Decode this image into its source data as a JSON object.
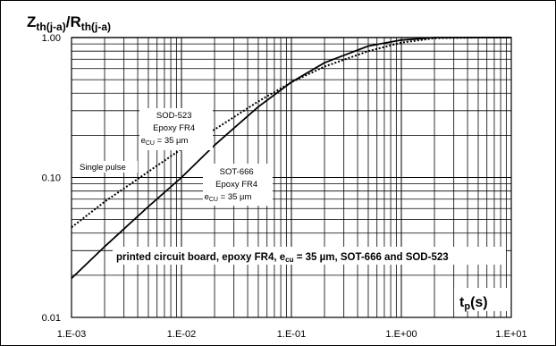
{
  "chart_data": {
    "type": "line",
    "title_parts": [
      "Z",
      "th(j-a)",
      "/R",
      "th(j-a)"
    ],
    "xlabel_parts": [
      "t",
      "p",
      "(s)"
    ],
    "xscale": "log",
    "yscale": "log",
    "xlim": [
      0.001,
      10
    ],
    "ylim": [
      0.01,
      1
    ],
    "grid": true,
    "x_ticks": [
      "1.E-03",
      "1.E-02",
      "1.E-01",
      "1.E+00",
      "1.E+01"
    ],
    "y_ticks": [
      "1.00",
      "0.10",
      "0.01"
    ],
    "series": [
      {
        "label_lines": [
          "SOT-666",
          "Epoxy FR4",
          "e",
          "CU",
          " = 35 µm"
        ],
        "style": "solid",
        "x": [
          0.001,
          0.002,
          0.005,
          0.01,
          0.02,
          0.05,
          0.1,
          0.2,
          0.5,
          1,
          2,
          5,
          10
        ],
        "y": [
          0.019,
          0.032,
          0.062,
          0.1,
          0.17,
          0.32,
          0.48,
          0.66,
          0.87,
          0.96,
          1.0,
          1.0,
          1.0
        ]
      },
      {
        "label_lines": [
          "SOD-523",
          "Epoxy FR4",
          "e",
          "CU",
          " = 35 µm"
        ],
        "style": "dotted",
        "x": [
          0.001,
          0.002,
          0.005,
          0.01,
          0.02,
          0.05,
          0.1,
          0.2,
          0.5,
          1,
          2,
          5,
          10
        ],
        "y": [
          0.044,
          0.067,
          0.11,
          0.16,
          0.22,
          0.35,
          0.48,
          0.62,
          0.8,
          0.92,
          0.99,
          1.0,
          1.0
        ]
      }
    ],
    "annotations": {
      "single_pulse": "Single pulse",
      "board_parts": [
        "printed circuit board, epoxy FR4, e",
        "cu",
        " = 35 µm, SOT-666 and SOD-523"
      ]
    }
  }
}
